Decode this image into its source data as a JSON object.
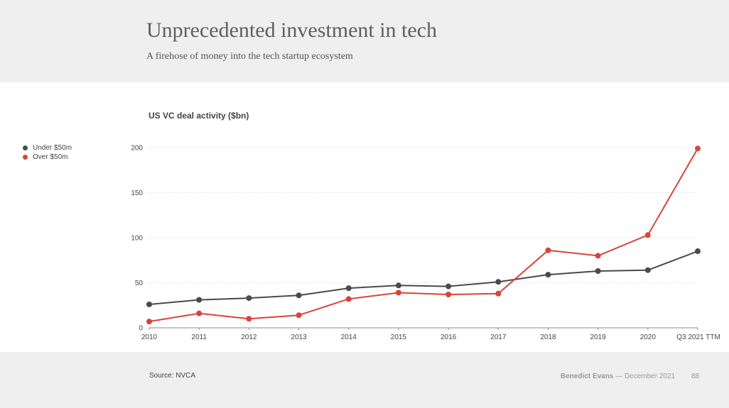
{
  "header": {
    "title": "Unprecedented investment in tech",
    "subtitle": "A firehose of money into the tech startup ecosystem"
  },
  "footer": {
    "source": "Source: NVCA",
    "author": "Benedict Evans",
    "separator": "—",
    "date": "December 2021",
    "page_number": "88"
  },
  "chart_data": {
    "type": "line",
    "title": "US VC deal activity ($bn)",
    "xlabel": "",
    "ylabel": "",
    "x": [
      "2010",
      "2011",
      "2012",
      "2013",
      "2014",
      "2015",
      "2016",
      "2017",
      "2018",
      "2019",
      "2020",
      "Q3 2021 TTM"
    ],
    "yticks": [
      0,
      50,
      100,
      150,
      200
    ],
    "ylim": [
      0,
      200
    ],
    "grid": true,
    "legend_position": "left",
    "series": [
      {
        "name": "Under $50m",
        "color": "#4a4a4a",
        "values": [
          26,
          31,
          33,
          36,
          44,
          47,
          46,
          51,
          59,
          63,
          64,
          85
        ]
      },
      {
        "name": "Over $50m",
        "color": "#d9443b",
        "values": [
          7,
          16,
          10,
          14,
          32,
          39,
          37,
          38,
          86,
          80,
          103,
          199
        ]
      }
    ]
  }
}
